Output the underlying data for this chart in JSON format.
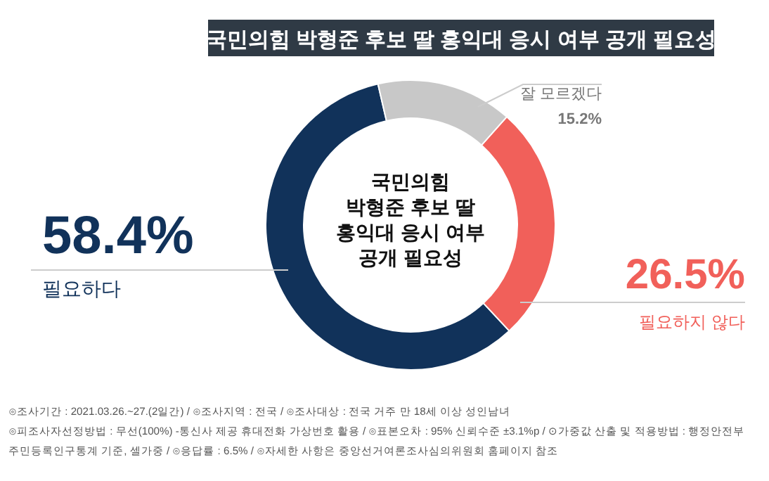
{
  "chart_data": {
    "type": "donut",
    "title": "국민의힘 박형준 후보 딸 홍익대 응시 여부 공개 필요성",
    "categories": [
      "필요하다",
      "필요하지 않다",
      "잘 모르겠다"
    ],
    "values": [
      58.4,
      26.5,
      15.2
    ],
    "colors": [
      "#11325a",
      "#f1605a",
      "#c8c8c8"
    ],
    "value_labels": [
      "58.4%",
      "26.5%",
      "15.2%"
    ],
    "annotations": [
      "국민의힘\n박형준 후보 딸\n홍익대 응시 여부\n공개 필요성",
      "⊙조사기간 : 2021.03.26.~27.(2일간)  /  ⊙조사지역 : 전국  /  ⊙조사대상 : 전국 거주 만 18세 이상 성인남녀",
      "⊙피조사자선정방법 : 무선(100%) -통신사 제공 휴대전화 가상번호 활용  /  ⊙표본오차 : 95% 신뢰수준 ±3.1%p  /  ⊙가중값 산출 및 적용방법 : 행정안전부",
      "주민등록인구통계 기준, 셀가중  /  ⊙응답률 : 6.5%  /  ⊙자세한 사항은 중앙선거여론조사심의위원회 홈페이지 참조"
    ]
  }
}
